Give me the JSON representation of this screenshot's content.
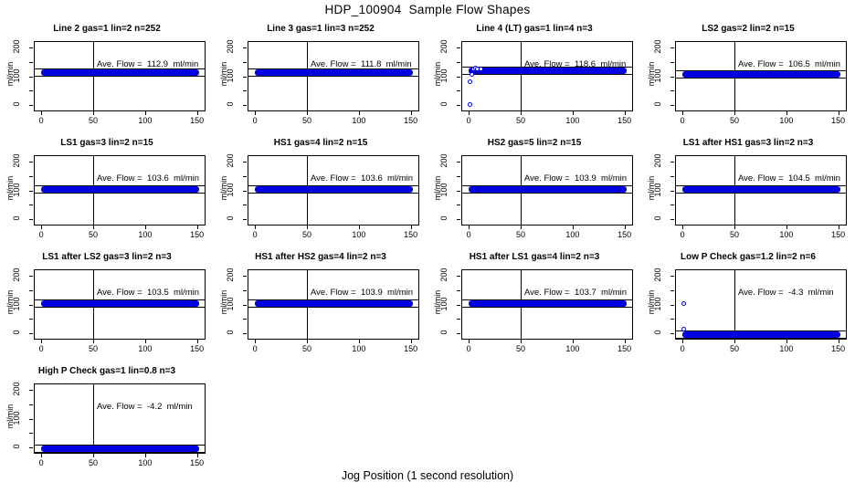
{
  "chart_data": {
    "type": "scatter",
    "title": "HDP_100904  Sample Flow Shapes",
    "xlabel": "Jog Position (1 second resolution)",
    "ylabel": "ml/min",
    "xlim": [
      -6.3,
      157.3
    ],
    "ylim": [
      -20,
      220
    ],
    "x_ticks": [
      0,
      50,
      100,
      150
    ],
    "y_ticks": [
      0,
      50,
      100,
      150,
      200
    ],
    "y_labeled_ticks": [
      0,
      100,
      200
    ],
    "ref_line_x": 50,
    "point_color": "#0000e0",
    "band_x_range": [
      0,
      152
    ],
    "band_halfwidth_units": 11,
    "grid": {
      "columns": 4,
      "rows": 4
    },
    "legend_position": "none",
    "panels": [
      {
        "title": "Line 2 gas=1 lin=2 n=252",
        "ave_flow": 112.9,
        "ave_label": "Ave. Flow =  112.9  ml/min",
        "band_y": 112.9,
        "outliers": []
      },
      {
        "title": "Line 3 gas=1 lin=3 n=252",
        "ave_flow": 111.8,
        "ave_label": "Ave. Flow =  111.8  ml/min",
        "band_y": 111.8,
        "outliers": []
      },
      {
        "title": "Line 4 (LT) gas=1 lin=4 n=3",
        "ave_flow": 118.6,
        "ave_label": "Ave. Flow =  118.6  ml/min",
        "band_y": 118.6,
        "outliers": [
          [
            2,
            0
          ],
          [
            2,
            78
          ],
          [
            3,
            106
          ],
          [
            5,
            124
          ],
          [
            7,
            127
          ],
          [
            9,
            125
          ],
          [
            12,
            124
          ]
        ]
      },
      {
        "title": "LS2 gas=2 lin=2 n=15",
        "ave_flow": 106.5,
        "ave_label": "Ave. Flow =  106.5  ml/min",
        "band_y": 106.5,
        "outliers": []
      },
      {
        "title": "LS1 gas=3 lin=2 n=15",
        "ave_flow": 103.6,
        "ave_label": "Ave. Flow =  103.6  ml/min",
        "band_y": 103.6,
        "outliers": []
      },
      {
        "title": "HS1 gas=4 lin=2 n=15",
        "ave_flow": 103.6,
        "ave_label": "Ave. Flow =  103.6  ml/min",
        "band_y": 103.6,
        "outliers": []
      },
      {
        "title": "HS2 gas=5 lin=2 n=15",
        "ave_flow": 103.9,
        "ave_label": "Ave. Flow =  103.9  ml/min",
        "band_y": 103.9,
        "outliers": []
      },
      {
        "title": "LS1 after HS1 gas=3 lin=2 n=3",
        "ave_flow": 104.5,
        "ave_label": "Ave. Flow =  104.5  ml/min",
        "band_y": 104.5,
        "outliers": []
      },
      {
        "title": "LS1 after LS2 gas=3 lin=2 n=3",
        "ave_flow": 103.5,
        "ave_label": "Ave. Flow =  103.5  ml/min",
        "band_y": 103.5,
        "outliers": []
      },
      {
        "title": "HS1 after HS2 gas=4 lin=2 n=3",
        "ave_flow": 103.9,
        "ave_label": "Ave. Flow =  103.9  ml/min",
        "band_y": 103.9,
        "outliers": []
      },
      {
        "title": "HS1 after LS1 gas=4 lin=2 n=3",
        "ave_flow": 103.7,
        "ave_label": "Ave. Flow =  103.7  ml/min",
        "band_y": 103.7,
        "outliers": []
      },
      {
        "title": "Low P Check gas=1.2 lin=2 n=6",
        "ave_flow": -4.3,
        "ave_label": "Ave. Flow =  -4.3  ml/min",
        "band_y": -4.3,
        "outliers": [
          [
            2,
            103
          ],
          [
            2,
            13
          ]
        ]
      },
      {
        "title": "High P Check gas=1 lin=0.8 n=3",
        "ave_flow": -4.2,
        "ave_label": "Ave. Flow =  -4.2  ml/min",
        "band_y": -4.2,
        "outliers": []
      }
    ]
  }
}
